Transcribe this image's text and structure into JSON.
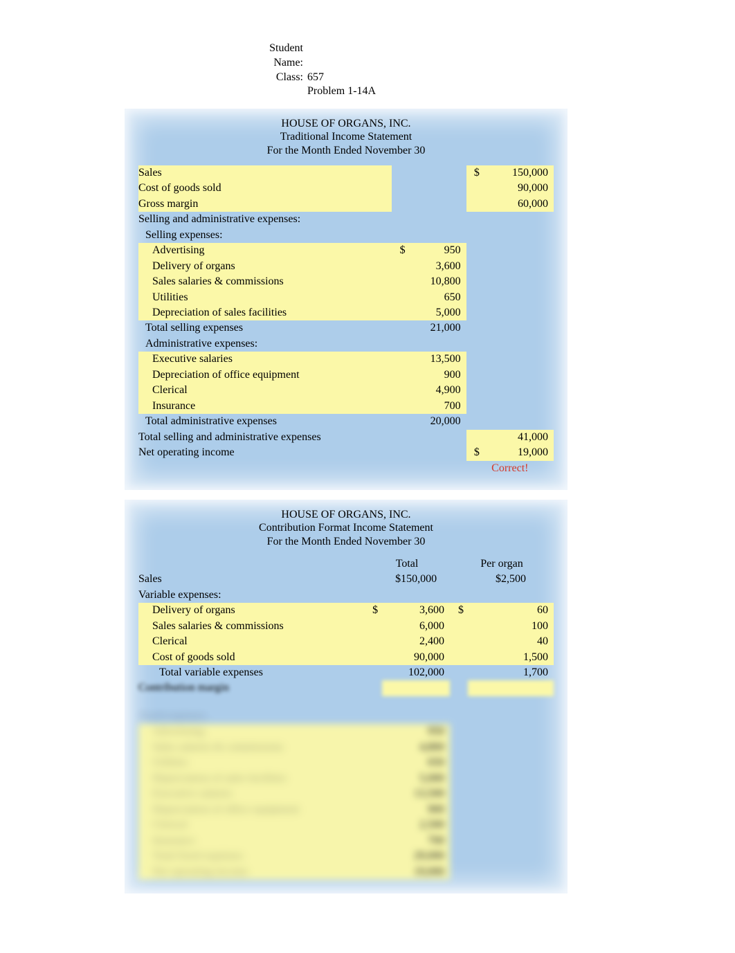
{
  "header": {
    "student_label": "Student Name:",
    "student_value": "",
    "class_label": "Class:",
    "class_value": "657",
    "problem_line": "Problem 1-14A"
  },
  "panel1": {
    "title_company": "HOUSE OF ORGANS, INC.",
    "title_statement": "Traditional Income Statement",
    "title_period": "For the Month Ended November 30",
    "rows": {
      "sales_lbl": "Sales",
      "sales_sym": "$",
      "sales_val": "150,000",
      "cogs_lbl": "Cost of goods sold",
      "cogs_val": "90,000",
      "gm_lbl": "Gross margin",
      "gm_val": "60,000",
      "sna_lbl": "Selling and administrative expenses:",
      "selling_lbl": "Selling expenses:",
      "adv_lbl": "Advertising",
      "adv_sym": "$",
      "adv_val": "950",
      "del_lbl": "Delivery of organs",
      "del_val": "3,600",
      "ssc_lbl": "Sales salaries & commissions",
      "ssc_val": "10,800",
      "util_lbl": "Utilities",
      "util_val": "650",
      "depsf_lbl": "Depreciation of sales facilities",
      "depsf_val": "5,000",
      "tsell_lbl": "Total selling expenses",
      "tsell_val": "21,000",
      "admin_lbl": "Administrative expenses:",
      "exs_lbl": "Executive salaries",
      "exs_val": "13,500",
      "depoe_lbl": "Depreciation of office equipment",
      "depoe_val": "900",
      "cler_lbl": "Clerical",
      "cler_val": "4,900",
      "ins_lbl": "Insurance",
      "ins_val": "700",
      "tadmin_lbl": "Total administrative expenses",
      "tadmin_val": "20,000",
      "tsna_lbl": "Total selling and administrative expenses",
      "tsna_val": "41,000",
      "noi_lbl": "Net operating income",
      "noi_sym": "$",
      "noi_val": "19,000",
      "correct": "Correct!"
    }
  },
  "panel2": {
    "title_company": "HOUSE OF ORGANS, INC.",
    "title_statement": "Contribution Format Income Statement",
    "title_period": "For the Month Ended November 30",
    "col_total": "Total",
    "col_per": "Per organ",
    "rows": {
      "sales_lbl": "Sales",
      "sales_tot": "$150,000",
      "sales_per": "$2,500",
      "var_lbl": "Variable expenses:",
      "del_lbl": "Delivery of organs",
      "del_sym": "$",
      "del_tot": "3,600",
      "del_sym2": "$",
      "del_per": "60",
      "ssc_lbl": "Sales salaries & commissions",
      "ssc_tot": "6,000",
      "ssc_per": "100",
      "cler_lbl": "Clerical",
      "cler_tot": "2,400",
      "cler_per": "40",
      "cogs_lbl": "Cost of goods sold",
      "cogs_tot": "90,000",
      "cogs_per": "1,500",
      "tvar_lbl": "Total variable expenses",
      "tvar_tot": "102,000",
      "tvar_per": "1,700",
      "cm_lbl": "Contribution margin"
    },
    "blurred_rows": [
      {
        "lbl": "Fixed expenses",
        "v": ""
      },
      {
        "lbl": "Advertising",
        "v": "950"
      },
      {
        "lbl": "Sales salaries & commissions",
        "v": "4,800"
      },
      {
        "lbl": "Utilities",
        "v": "650"
      },
      {
        "lbl": "Depreciation of sales facilities",
        "v": "5,000"
      },
      {
        "lbl": "Executive salaries",
        "v": "13,500"
      },
      {
        "lbl": "Depreciation of office equipment",
        "v": "900"
      },
      {
        "lbl": "Clerical",
        "v": "2,500"
      },
      {
        "lbl": "Insurance",
        "v": "700"
      },
      {
        "lbl": "Total fixed expenses",
        "v": "29,000"
      },
      {
        "lbl": "Net operating income",
        "v": "19,000"
      }
    ]
  },
  "colors": {
    "panel_bg": "#adcdea",
    "highlight": "#fbf8a8",
    "correct_text": "#d43a2a"
  }
}
